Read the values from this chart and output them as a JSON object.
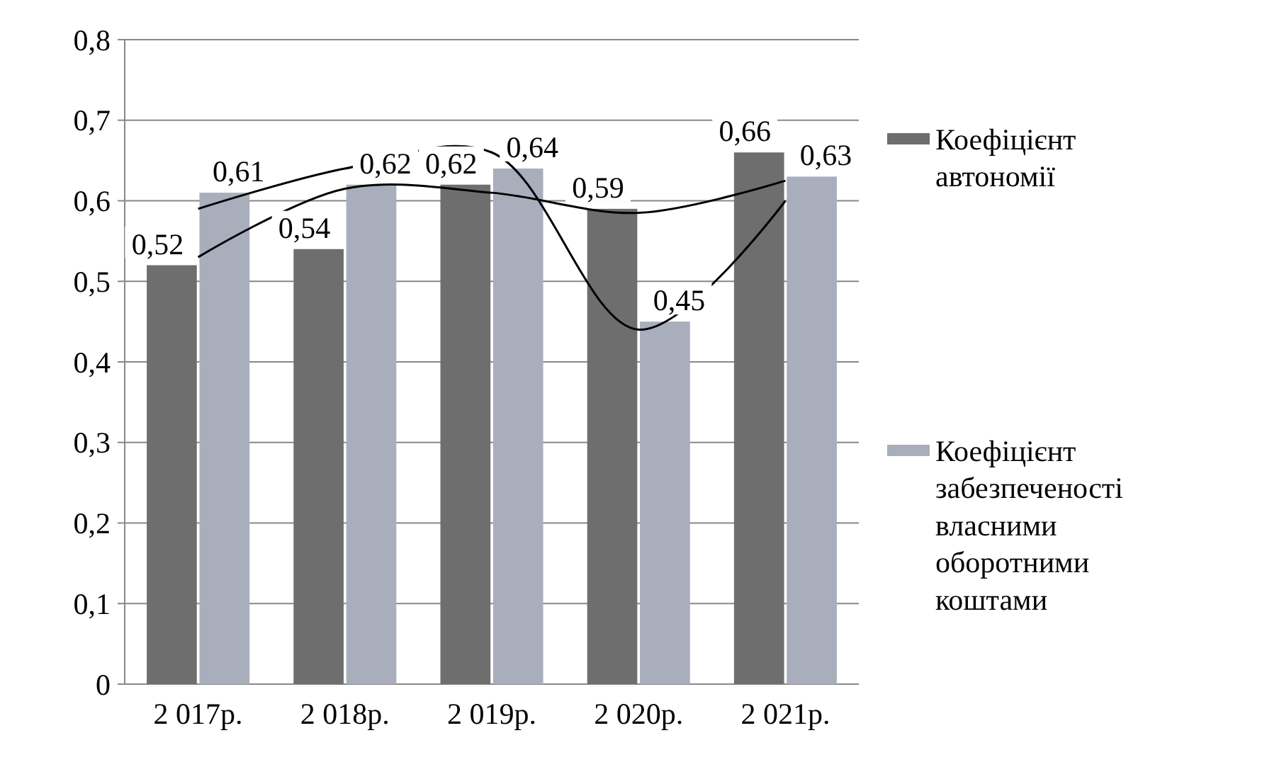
{
  "chart_data": {
    "type": "bar",
    "categories": [
      "2 017р.",
      "2 018р.",
      "2 019р.",
      "2 020р.",
      "2 021р."
    ],
    "series": [
      {
        "name": "Коефіцієнт автономії",
        "color": "#6e6e6e",
        "values": [
          0.52,
          0.54,
          0.62,
          0.59,
          0.66
        ],
        "value_labels": [
          "0,52",
          "0,54",
          "0,62",
          "0,59",
          "0,66"
        ]
      },
      {
        "name": "Коефіцієнт забезпеченості власними оборотними коштами",
        "color": "#a9aebc",
        "values": [
          0.61,
          0.62,
          0.64,
          0.45,
          0.63
        ],
        "value_labels": [
          "0,61",
          "0,62",
          "0,64",
          "0,45",
          "0,63"
        ]
      },
      {
        "type": "line",
        "color": "#000000",
        "values": [
          0.53,
          0.615,
          0.61,
          0.585,
          0.625
        ]
      },
      {
        "type": "line",
        "color": "#000000",
        "values": [
          0.59,
          0.64,
          0.66,
          0.44,
          0.6
        ]
      }
    ],
    "ylim": [
      0,
      0.8
    ],
    "yticks": [
      0,
      {
        "value": 0.1,
        "label": "0,1"
      },
      {
        "value": 0.2,
        "label": "0,2"
      },
      {
        "value": 0.3,
        "label": "0,3"
      },
      {
        "value": 0.4,
        "label": "0,4"
      },
      {
        "value": 0.5,
        "label": "0,5"
      },
      {
        "value": 0.6,
        "label": "0,6"
      },
      {
        "value": 0.7,
        "label": "0,7"
      },
      {
        "value": 0.8,
        "label": "0,8"
      }
    ],
    "grid": "y",
    "legend": "right"
  }
}
